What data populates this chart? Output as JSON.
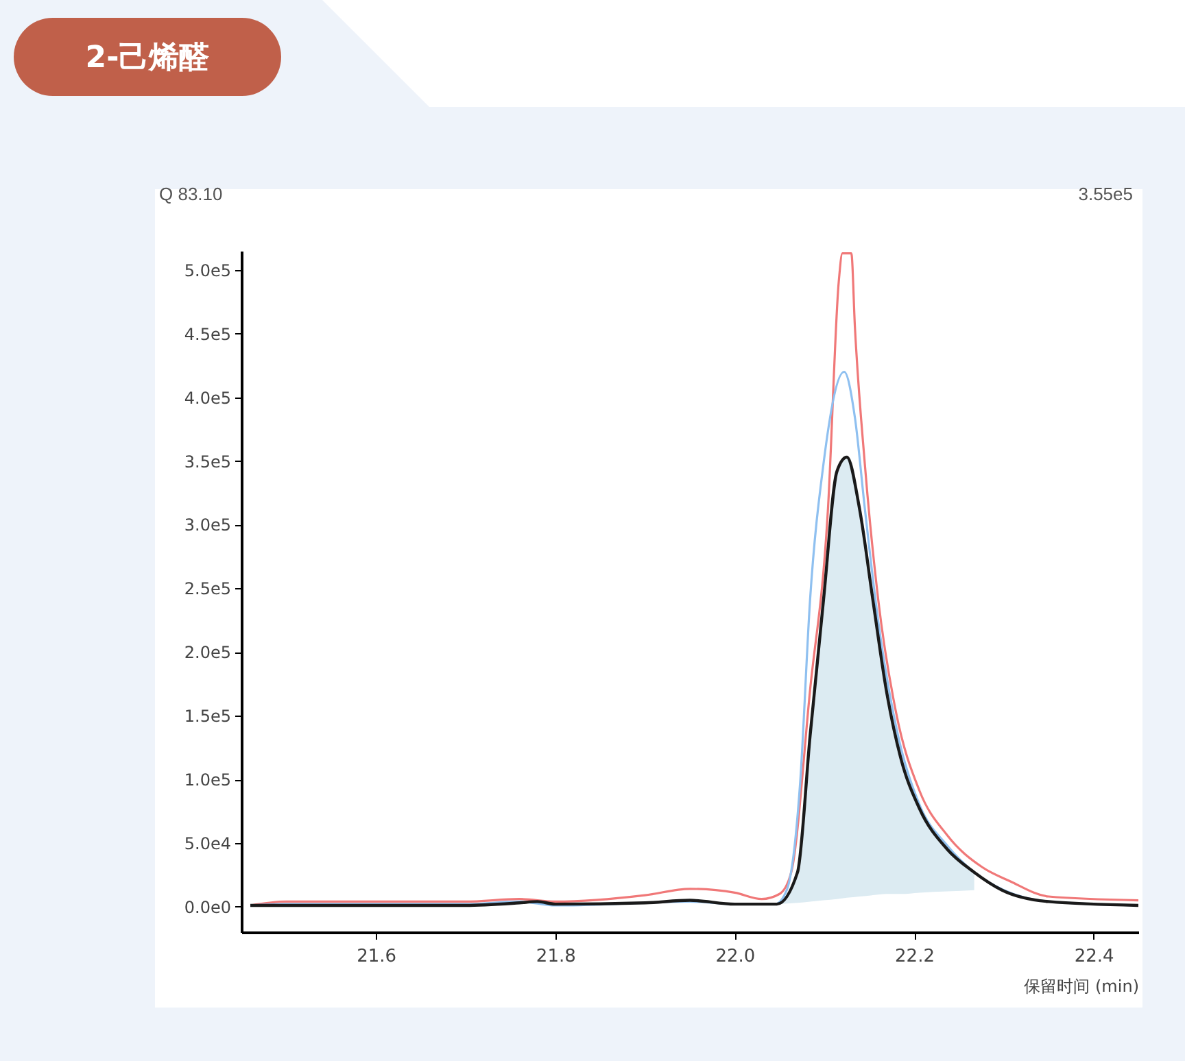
{
  "chart_data": {
    "type": "line",
    "title": "2-己烯醛",
    "xlabel": "保留时间  (min)",
    "annotations": [
      "Q 83.10",
      "3.55e5"
    ],
    "xlim": [
      21.45,
      22.45
    ],
    "xticks": [
      21.6,
      21.8,
      {
        "value": 22,
        "label": "22.0"
      },
      22.2,
      22.4
    ],
    "ylim": [
      -20000,
      515000
    ],
    "yticks": [
      {
        "value": 0,
        "label": "0.0e0"
      },
      {
        "value": 50000,
        "label": "5.0e4"
      },
      {
        "value": 100000,
        "label": "1.0e5"
      },
      {
        "value": 150000,
        "label": "1.5e5"
      },
      {
        "value": 200000,
        "label": "2.0e5"
      },
      {
        "value": 250000,
        "label": "2.5e5"
      },
      {
        "value": 300000,
        "label": "3.0e5"
      },
      {
        "value": 350000,
        "label": "3.5e5"
      },
      {
        "value": 400000,
        "label": "4.0e5"
      },
      {
        "value": 450000,
        "label": "4.5e5"
      },
      {
        "value": 500000,
        "label": "5.0e5"
      }
    ],
    "series": [
      {
        "color": "#f07878",
        "x": [
          21.46,
          21.5,
          21.7,
          21.76,
          21.8,
          21.9,
          21.95,
          22.0,
          22.03,
          22.05,
          22.063,
          22.084,
          22.104,
          22.116,
          22.12,
          22.13,
          22.134,
          22.145,
          22.16,
          22.18,
          22.206,
          22.237,
          22.276,
          22.307,
          22.35,
          22.45
        ],
        "values": [
          1000,
          4000,
          4000,
          6000,
          4000,
          9000,
          14000,
          11000,
          6000,
          10000,
          27000,
          170000,
          313000,
          491000,
          513000,
          513000,
          455000,
          348000,
          241000,
          152000,
          91000,
          56000,
          31000,
          20000,
          8000,
          5000
        ]
      },
      {
        "color": "#8fc0f0",
        "x": [
          21.46,
          21.5,
          21.7,
          21.76,
          21.8,
          21.9,
          21.95,
          22.0,
          22.045,
          22.058,
          22.073,
          22.084,
          22.099,
          22.122,
          22.134,
          22.145,
          22.16,
          22.18,
          22.206,
          22.237,
          22.267,
          22.3,
          22.35,
          22.45
        ],
        "values": [
          1000,
          2000,
          2000,
          4000,
          1000,
          3000,
          4000,
          2000,
          2000,
          13000,
          98000,
          241000,
          348000,
          420000,
          384000,
          313000,
          224000,
          141000,
          80000,
          48000,
          27000,
          13000,
          4000,
          1000
        ]
      },
      {
        "color": "#1a1a1a",
        "x": [
          21.46,
          21.5,
          21.7,
          21.76,
          21.78,
          21.8,
          21.9,
          21.95,
          22.0,
          22.047,
          22.07,
          22.084,
          22.099,
          22.114,
          22.125,
          22.139,
          22.154,
          22.169,
          22.185,
          22.206,
          22.237,
          22.267,
          22.298,
          22.35,
          22.45
        ],
        "values": [
          1000,
          1000,
          1000,
          3000,
          4000,
          2000,
          3000,
          5000,
          2000,
          2000,
          27000,
          134000,
          241000,
          342000,
          353000,
          313000,
          241000,
          170000,
          117000,
          77000,
          45000,
          27000,
          13000,
          4000,
          1000
        ],
        "lower": [
          null,
          null,
          null,
          null,
          null,
          null,
          null,
          null,
          null,
          2000,
          3000,
          4000,
          5000,
          6000,
          7000,
          8000,
          9000,
          10000,
          10000,
          11000,
          12000,
          13000,
          null,
          null,
          null
        ],
        "upper": [
          null,
          null,
          null,
          null,
          null,
          null,
          null,
          null,
          null,
          2000,
          27000,
          134000,
          241000,
          342000,
          353000,
          313000,
          241000,
          170000,
          117000,
          77000,
          45000,
          27000,
          null,
          null,
          null
        ]
      }
    ]
  }
}
